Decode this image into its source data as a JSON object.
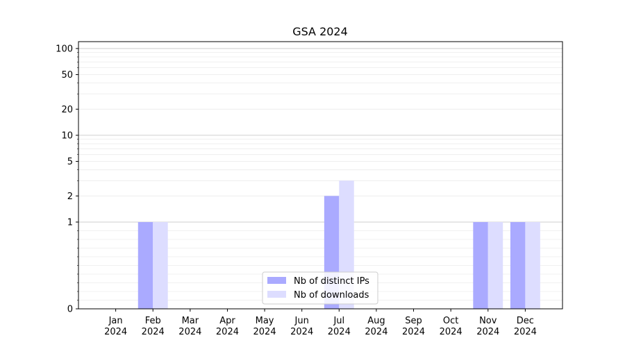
{
  "chart_data": {
    "type": "bar",
    "title": "GSA 2024",
    "categories": [
      "Jan 2024",
      "Feb 2024",
      "Mar 2024",
      "Apr 2024",
      "May 2024",
      "Jun 2024",
      "Jul 2024",
      "Aug 2024",
      "Sep 2024",
      "Oct 2024",
      "Nov 2024",
      "Dec 2024"
    ],
    "category_lines": [
      [
        "Jan",
        "2024"
      ],
      [
        "Feb",
        "2024"
      ],
      [
        "Mar",
        "2024"
      ],
      [
        "Apr",
        "2024"
      ],
      [
        "May",
        "2024"
      ],
      [
        "Jun",
        "2024"
      ],
      [
        "Jul",
        "2024"
      ],
      [
        "Aug",
        "2024"
      ],
      [
        "Sep",
        "2024"
      ],
      [
        "Oct",
        "2024"
      ],
      [
        "Nov",
        "2024"
      ],
      [
        "Dec",
        "2024"
      ]
    ],
    "series": [
      {
        "name": "Nb of distinct IPs",
        "color": "#aaaaff",
        "values": [
          0,
          1,
          0,
          0,
          0,
          0,
          2,
          0,
          0,
          0,
          1,
          1
        ]
      },
      {
        "name": "Nb of downloads",
        "color": "#ddddff",
        "values": [
          0,
          1,
          0,
          0,
          0,
          0,
          3,
          0,
          0,
          0,
          1,
          1
        ]
      }
    ],
    "y_scale": "symlog",
    "ylim": [
      0,
      120
    ],
    "y_ticks": [
      0,
      1,
      2,
      5,
      10,
      20,
      50,
      100
    ],
    "y_tick_labels": [
      "0",
      "1",
      "2",
      "5",
      "10",
      "20",
      "50",
      "100"
    ],
    "grid": true,
    "legend_position": "lower-center",
    "xlabel": "",
    "ylabel": ""
  }
}
